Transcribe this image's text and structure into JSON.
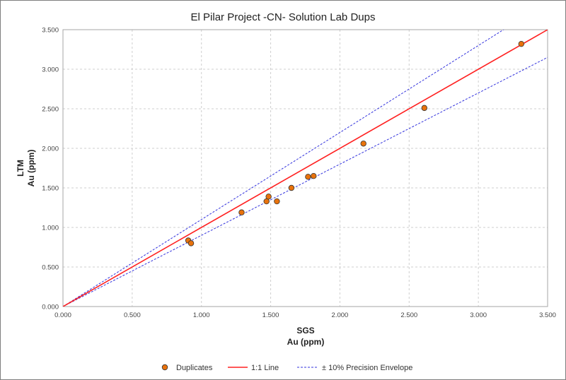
{
  "chart_data": {
    "type": "scatter",
    "title": "El Pilar Project -CN- Solution Lab Dups",
    "xlabel": [
      "SGS",
      "Au (ppm)"
    ],
    "ylabel": [
      "LTM",
      "Au (ppm)"
    ],
    "xlim": [
      0,
      3.5
    ],
    "ylim": [
      0,
      3.5
    ],
    "x_ticks": [
      "0.000",
      "0.500",
      "1.000",
      "1.500",
      "2.000",
      "2.500",
      "3.000",
      "3.500"
    ],
    "y_ticks": [
      "0.000",
      "0.500",
      "1.000",
      "1.500",
      "2.000",
      "2.500",
      "3.000",
      "3.500"
    ],
    "grid": true,
    "legend_position": "bottom",
    "series": [
      {
        "name": "Duplicates",
        "kind": "points",
        "color": "#e8720c",
        "x": [
          0.905,
          0.925,
          1.29,
          1.47,
          1.485,
          1.545,
          1.65,
          1.77,
          1.81,
          2.17,
          2.61,
          3.31
        ],
        "y": [
          0.835,
          0.8,
          1.19,
          1.33,
          1.39,
          1.33,
          1.5,
          1.64,
          1.65,
          2.06,
          2.51,
          3.32
        ]
      },
      {
        "name": "1:1 Line",
        "kind": "line",
        "color": "#ff2020",
        "slope": 1.0
      },
      {
        "name": "± 10% Precision Envelope",
        "kind": "dashed",
        "color": "#3333dd",
        "slopes": [
          1.1,
          0.9
        ]
      }
    ]
  }
}
